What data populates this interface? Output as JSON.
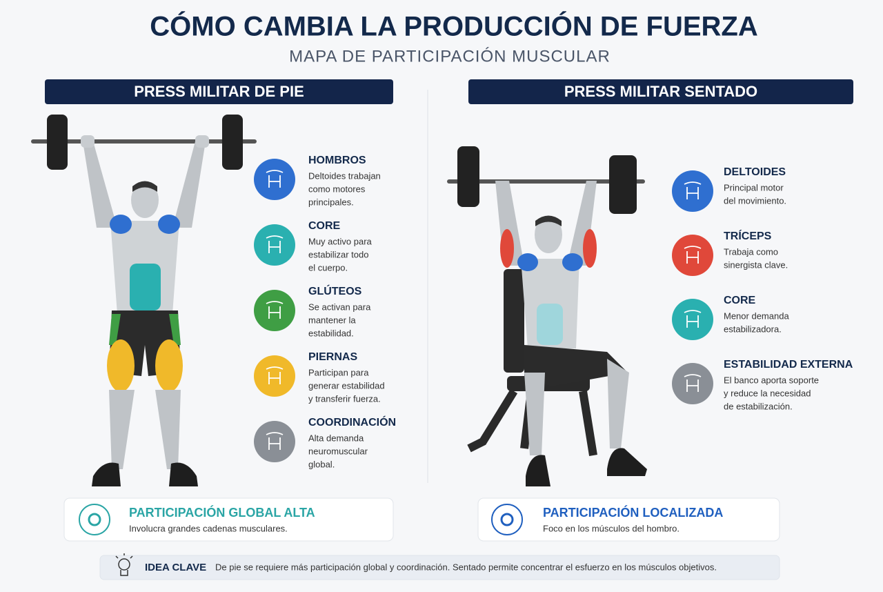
{
  "header": {
    "title": "CÓMO CAMBIA LA PRODUCCIÓN DE FUERZA",
    "subtitle": "MAPA DE PARTICIPACIÓN MUSCULAR"
  },
  "panels": [
    {
      "title": "PRESS MILITAR DE PIE",
      "items": [
        {
          "title": "HOMBROS",
          "color": "#2f6fd0",
          "lines": [
            "Deltoides trabajan",
            "como motores",
            "principales."
          ]
        },
        {
          "title": "CORE",
          "color": "#2ab0b0",
          "lines": [
            "Muy activo para",
            "estabilizar todo",
            "el cuerpo."
          ]
        },
        {
          "title": "GLÚTEOS",
          "color": "#3f9e44",
          "lines": [
            "Se activan para",
            "mantener la",
            "estabilidad."
          ]
        },
        {
          "title": "PIERNAS",
          "color": "#f0b92a",
          "lines": [
            "Participan para",
            "generar estabilidad",
            "y transferir fuerza."
          ]
        },
        {
          "title": "COORDINACIÓN",
          "color": "#8a8f96",
          "lines": [
            "Alta demanda",
            "neuromuscular",
            "global."
          ]
        }
      ],
      "summary": {
        "title": "PARTICIPACIÓN GLOBAL ALTA",
        "text": "Involucra grandes cadenas musculares.",
        "color": "#2aa5a5"
      }
    },
    {
      "title": "PRESS MILITAR SENTADO",
      "items": [
        {
          "title": "DELTOIDES",
          "color": "#2f6fd0",
          "lines": [
            "Principal motor",
            "del movimiento."
          ]
        },
        {
          "title": "TRÍCEPS",
          "color": "#e0483a",
          "lines": [
            "Trabaja como",
            "sinergista clave."
          ]
        },
        {
          "title": "CORE",
          "color": "#2ab0b0",
          "lines": [
            "Menor demanda",
            "estabilizadora."
          ]
        },
        {
          "title": "ESTABILIDAD EXTERNA",
          "color": "#8a8f96",
          "lines": [
            "El banco aporta soporte",
            "y reduce la necesidad",
            "de estabilización."
          ]
        }
      ],
      "summary": {
        "title": "PARTICIPACIÓN LOCALIZADA",
        "text": "Foco en los músculos del hombro.",
        "color": "#1f5fbf"
      }
    }
  ],
  "key_idea": {
    "label": "IDEA CLAVE",
    "text": "De pie se requiere más participación global y coordinación. Sentado permite concentrar el esfuerzo en los músculos objetivos."
  }
}
